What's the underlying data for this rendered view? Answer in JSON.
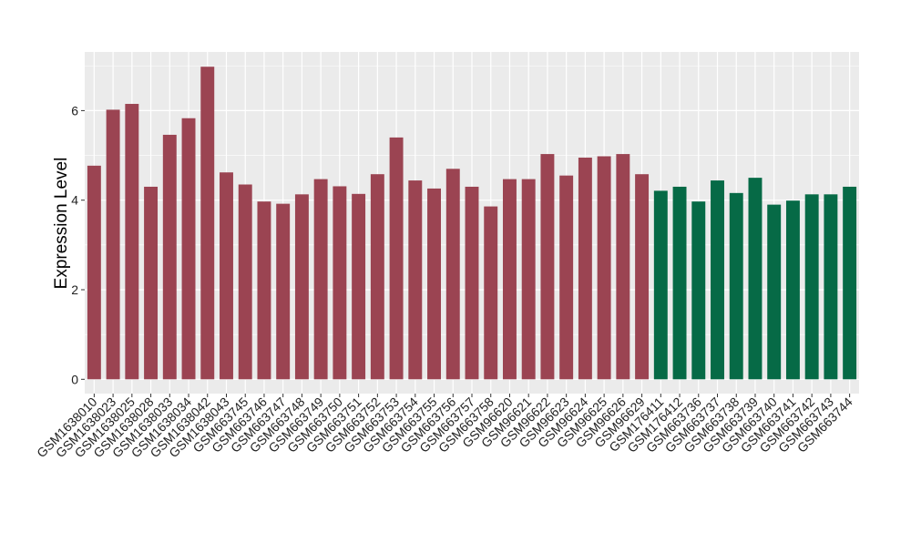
{
  "chart_data": {
    "type": "bar",
    "title": "",
    "xlabel": "",
    "ylabel": "Expression Level",
    "ylim": [
      0,
      7.2
    ],
    "yticks": [
      0,
      2,
      4,
      6
    ],
    "grid": true,
    "categories": [
      "GSM1638010",
      "GSM1638023",
      "GSM1638025",
      "GSM1638028",
      "GSM1638033",
      "GSM1638034",
      "GSM1638042",
      "GSM1638043",
      "GSM663745",
      "GSM663746",
      "GSM663747",
      "GSM663748",
      "GSM663749",
      "GSM663750",
      "GSM663751",
      "GSM663752",
      "GSM663753",
      "GSM663754",
      "GSM663755",
      "GSM663756",
      "GSM663757",
      "GSM663758",
      "GSM96620",
      "GSM96621",
      "GSM96622",
      "GSM96623",
      "GSM96624",
      "GSM96625",
      "GSM96626",
      "GSM96629",
      "GSM176411",
      "GSM176412",
      "GSM663736",
      "GSM663737",
      "GSM663738",
      "GSM663739",
      "GSM663740",
      "GSM663741",
      "GSM663742",
      "GSM663743",
      "GSM663744"
    ],
    "values": [
      4.77,
      6.02,
      6.15,
      4.3,
      5.46,
      5.83,
      6.98,
      4.62,
      4.35,
      3.97,
      3.92,
      4.13,
      4.47,
      4.31,
      4.14,
      4.58,
      5.4,
      4.44,
      4.26,
      4.7,
      4.3,
      3.86,
      4.47,
      4.47,
      5.03,
      4.55,
      4.95,
      4.98,
      5.03,
      4.58,
      4.21,
      4.3,
      3.97,
      4.44,
      4.16,
      4.5,
      3.9,
      3.99,
      4.13,
      4.13,
      4.3
    ],
    "groups": [
      0,
      0,
      0,
      0,
      0,
      0,
      0,
      0,
      0,
      0,
      0,
      0,
      0,
      0,
      0,
      0,
      0,
      0,
      0,
      0,
      0,
      0,
      0,
      0,
      0,
      0,
      0,
      0,
      0,
      0,
      1,
      1,
      1,
      1,
      1,
      1,
      1,
      1,
      1,
      1,
      1
    ],
    "group_colors": [
      "#9b4452",
      "#066a46"
    ],
    "panel_background": "#ebebeb",
    "grid_color": "#ffffff",
    "axis_text_color": "#4d4d4d"
  }
}
